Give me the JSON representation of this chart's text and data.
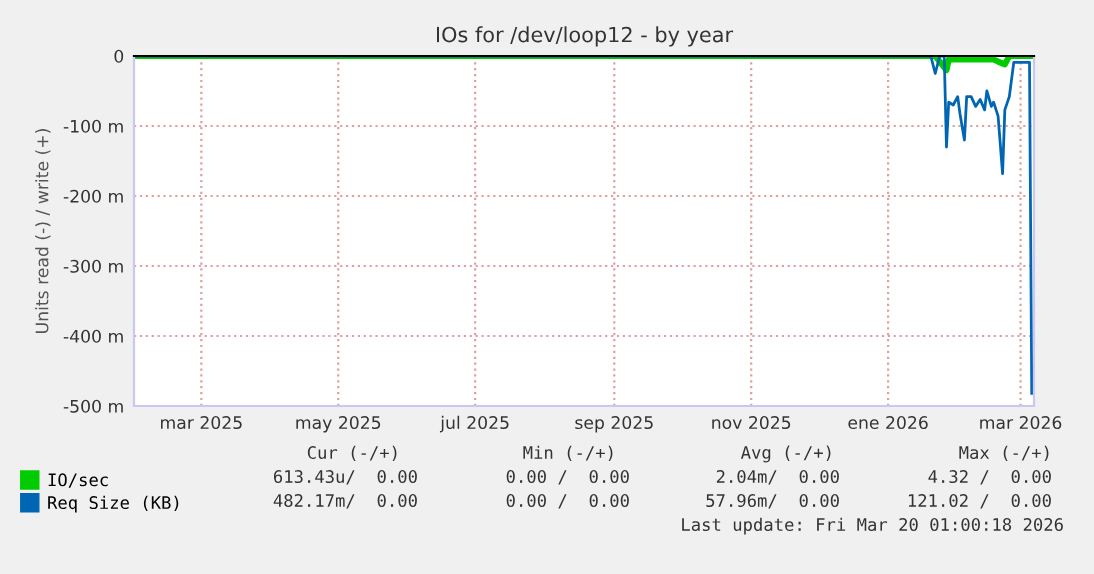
{
  "chart_data": {
    "type": "line",
    "title": "IOs for /dev/loop12 - by year",
    "ylabel": "Units read (-) / write (+)",
    "series": [
      {
        "name": "IO/sec",
        "color": "#00cc00",
        "x": [
          "2025-01-30",
          "2026-01-20",
          "2026-01-22",
          "2026-01-27",
          "2026-01-28",
          "2026-02-17",
          "2026-02-19",
          "2026-02-22",
          "2026-02-24",
          "2026-03-05",
          "2026-03-06"
        ],
        "values": [
          0,
          0,
          0,
          -20,
          -5,
          -5,
          -8,
          -12,
          0,
          0,
          0
        ]
      },
      {
        "name": "Req Size (KB)",
        "color": "#0066b3",
        "x": [
          "2025-01-30",
          "2026-01-20",
          "2026-01-22",
          "2026-01-24",
          "2026-01-26",
          "2026-01-27",
          "2026-01-28",
          "2026-01-30",
          "2026-02-01",
          "2026-02-02",
          "2026-02-04",
          "2026-02-05",
          "2026-02-07",
          "2026-02-09",
          "2026-02-11",
          "2026-02-13",
          "2026-02-14",
          "2026-02-16",
          "2026-02-17",
          "2026-02-19",
          "2026-02-21",
          "2026-02-22",
          "2026-02-24",
          "2026-02-26",
          "2026-03-05",
          "2026-03-06"
        ],
        "values": [
          0,
          0,
          -25,
          0,
          0,
          -130,
          -66,
          -70,
          -58,
          -82,
          -120,
          -58,
          -58,
          -72,
          -62,
          -77,
          -50,
          -72,
          -66,
          -86,
          -168,
          -77,
          -58,
          -9,
          -9,
          -482
        ]
      }
    ],
    "xlim": [
      "2025-01-30",
      "2026-03-07"
    ],
    "xticks": [
      {
        "value": "2025-03-01",
        "label": "mar 2025"
      },
      {
        "value": "2025-05-01",
        "label": "may 2025"
      },
      {
        "value": "2025-07-01",
        "label": "jul 2025"
      },
      {
        "value": "2025-09-01",
        "label": "sep 2025"
      },
      {
        "value": "2025-11-01",
        "label": "nov 2025"
      },
      {
        "value": "2026-01-01",
        "label": "ene 2026"
      },
      {
        "value": "2026-03-01",
        "label": "mar 2026"
      }
    ],
    "ylim": [
      -500,
      0
    ],
    "yticks": [
      {
        "value": -500,
        "label": "-500 m"
      },
      {
        "value": -400,
        "label": "-400 m"
      },
      {
        "value": -300,
        "label": "-300 m"
      },
      {
        "value": -200,
        "label": "-200 m"
      },
      {
        "value": -100,
        "label": "-100 m"
      },
      0
    ],
    "grid": true,
    "legend": "bottom",
    "marker": "none",
    "line_style": "solid",
    "annotations": [
      "Cur (-/+)",
      "Min (-/+)",
      "Avg (-/+)",
      "Max (-/+)",
      "613.43u/  0.00",
      "0.00 /  0.00",
      "2.04m/  0.00",
      "4.32 /  0.00",
      "482.17m/  0.00",
      "0.00 /  0.00",
      "57.96m/  0.00",
      "121.02 /  0.00",
      "Last update: Fri Mar 20 01:00:18 2026"
    ]
  }
}
